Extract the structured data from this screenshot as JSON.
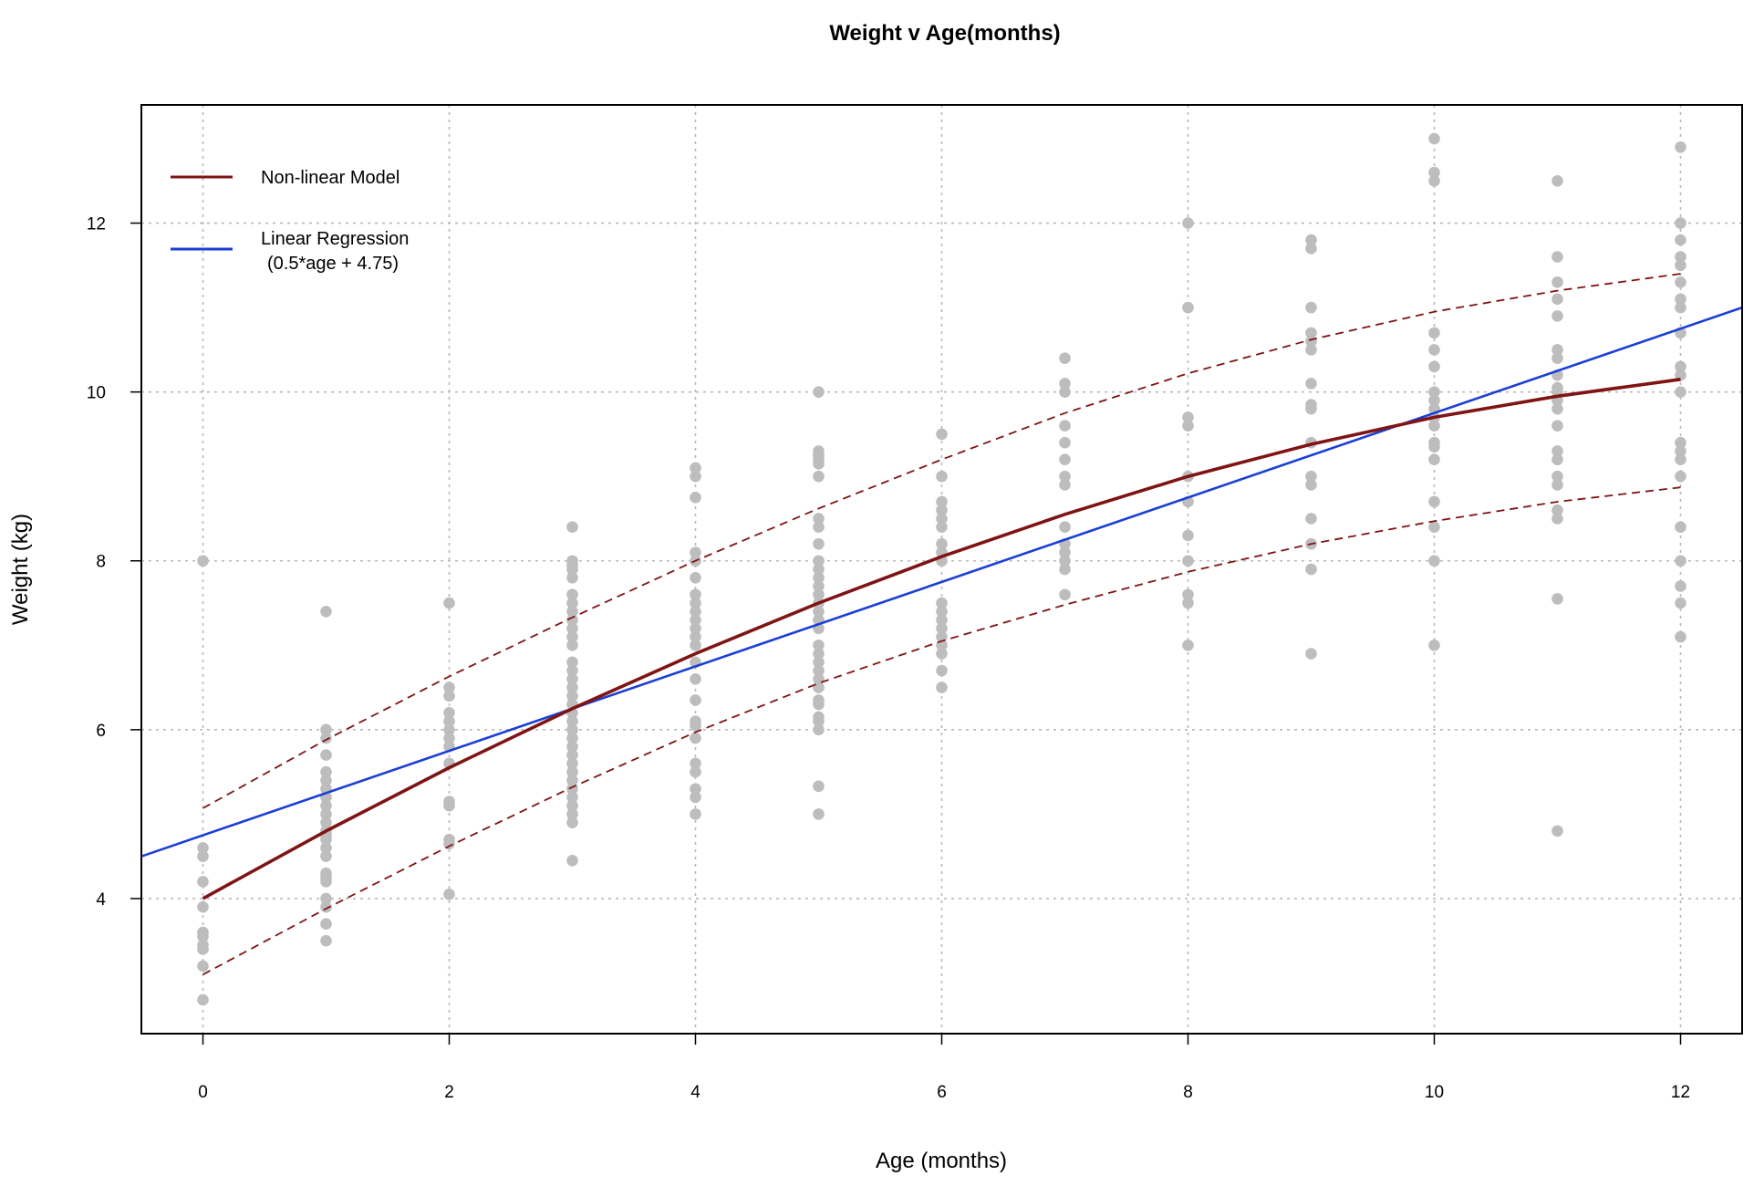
{
  "chart_data": {
    "type": "scatter",
    "title": "Weight v Age(months)",
    "xlabel": "Age (months)",
    "ylabel": "Weight (kg)",
    "xlim": [
      -0.5,
      12.5
    ],
    "ylim": [
      2.4,
      13.4
    ],
    "grid": true,
    "x_ticks": [
      0,
      2,
      4,
      6,
      8,
      10,
      12
    ],
    "y_ticks": [
      4,
      6,
      8,
      10,
      12
    ],
    "legend": {
      "position": "top-left",
      "entries": [
        {
          "label": "Non-linear Model",
          "color": "#7f1414"
        },
        {
          "label": "Linear Regression",
          "sublabel": "(0.5*age + 4.75)",
          "color": "#1b3fd6"
        }
      ]
    },
    "colors": {
      "points": "#bdbdbd",
      "nonlinear": "#7f1414",
      "linear": "#1b3fd6",
      "grid": "#b8b8b8"
    },
    "points": [
      {
        "x": 0,
        "y": [
          8.0,
          4.6,
          4.5,
          4.2,
          3.9,
          3.6,
          3.55,
          3.45,
          3.4,
          3.2,
          2.8
        ]
      },
      {
        "x": 1,
        "y": [
          7.4,
          6.0,
          5.9,
          5.7,
          5.5,
          5.4,
          5.3,
          5.2,
          5.1,
          5.0,
          4.9,
          4.8,
          4.75,
          4.7,
          4.6,
          4.5,
          4.3,
          4.25,
          4.2,
          4.0,
          3.9,
          3.7,
          3.5
        ]
      },
      {
        "x": 2,
        "y": [
          7.5,
          6.5,
          6.4,
          6.2,
          6.1,
          6.0,
          5.9,
          5.8,
          5.6,
          5.15,
          5.1,
          4.7,
          4.65,
          4.05
        ]
      },
      {
        "x": 3,
        "y": [
          8.4,
          8.0,
          7.95,
          7.9,
          7.8,
          7.6,
          7.5,
          7.4,
          7.3,
          7.2,
          7.1,
          7.0,
          6.8,
          6.7,
          6.6,
          6.5,
          6.4,
          6.3,
          6.2,
          6.1,
          6.0,
          5.9,
          5.8,
          5.7,
          5.6,
          5.5,
          5.4,
          5.3,
          5.2,
          5.1,
          5.0,
          4.9,
          4.45
        ]
      },
      {
        "x": 4,
        "y": [
          9.1,
          9.0,
          8.75,
          8.1,
          8.0,
          7.8,
          7.6,
          7.5,
          7.4,
          7.3,
          7.2,
          7.1,
          7.0,
          6.8,
          6.6,
          6.35,
          6.1,
          6.05,
          5.9,
          5.6,
          5.5,
          5.3,
          5.2,
          5.0
        ]
      },
      {
        "x": 5,
        "y": [
          10.0,
          9.3,
          9.25,
          9.2,
          9.15,
          9.0,
          8.5,
          8.4,
          8.2,
          8.0,
          7.9,
          7.8,
          7.7,
          7.6,
          7.5,
          7.4,
          7.3,
          7.2,
          7.0,
          6.9,
          6.8,
          6.7,
          6.6,
          6.5,
          6.35,
          6.3,
          6.15,
          6.1,
          6.0,
          5.33,
          5.0
        ]
      },
      {
        "x": 6,
        "y": [
          9.5,
          9.0,
          8.7,
          8.6,
          8.5,
          8.4,
          8.2,
          8.1,
          8.0,
          7.5,
          7.4,
          7.3,
          7.2,
          7.1,
          7.0,
          6.9,
          6.7,
          6.5
        ]
      },
      {
        "x": 7,
        "y": [
          10.4,
          10.1,
          10.0,
          9.6,
          9.4,
          9.2,
          9.0,
          8.9,
          8.4,
          8.2,
          8.1,
          8.0,
          7.9,
          7.6
        ]
      },
      {
        "x": 8,
        "y": [
          12.0,
          11.0,
          9.7,
          9.6,
          9.0,
          8.7,
          8.3,
          8.0,
          7.6,
          7.5,
          7.0
        ]
      },
      {
        "x": 9,
        "y": [
          11.8,
          11.7,
          11.0,
          10.7,
          10.6,
          10.5,
          10.1,
          9.85,
          9.8,
          9.4,
          9.0,
          8.9,
          8.5,
          8.2,
          7.9,
          6.9
        ]
      },
      {
        "x": 10,
        "y": [
          13.0,
          12.6,
          12.5,
          10.7,
          10.5,
          10.3,
          10.0,
          9.9,
          9.8,
          9.7,
          9.6,
          9.4,
          9.35,
          9.2,
          8.7,
          8.4,
          8.0,
          7.0
        ]
      },
      {
        "x": 11,
        "y": [
          12.5,
          11.6,
          11.3,
          11.1,
          10.9,
          10.5,
          10.4,
          10.2,
          10.05,
          10.0,
          9.9,
          9.8,
          9.6,
          9.3,
          9.2,
          9.0,
          8.9,
          8.6,
          8.5,
          7.55,
          4.8
        ]
      },
      {
        "x": 12,
        "y": [
          12.9,
          12.0,
          11.8,
          11.6,
          11.5,
          11.3,
          11.1,
          11.0,
          10.7,
          10.3,
          10.2,
          10.0,
          9.4,
          9.3,
          9.2,
          9.0,
          8.4,
          8.0,
          7.7,
          7.5,
          7.1
        ]
      }
    ],
    "series": [
      {
        "name": "Non-linear Model",
        "style": "solid",
        "x": [
          0,
          1,
          2,
          3,
          4,
          5,
          6,
          7,
          8,
          9,
          10,
          11,
          12
        ],
        "y": [
          4.0,
          4.8,
          5.55,
          6.25,
          6.9,
          7.5,
          8.05,
          8.55,
          9.0,
          9.38,
          9.7,
          9.95,
          10.15
        ]
      },
      {
        "name": "Linear Regression",
        "style": "solid",
        "x": [
          -0.5,
          12.5
        ],
        "y": [
          4.5,
          11.0
        ]
      },
      {
        "style": "dashed",
        "x": [
          0,
          1,
          2,
          3,
          4,
          5,
          6,
          7,
          8,
          9,
          10,
          11,
          12
        ],
        "y": [
          5.07,
          5.88,
          6.63,
          7.33,
          8.0,
          8.62,
          9.2,
          9.75,
          10.22,
          10.62,
          10.95,
          11.2,
          11.4
        ]
      },
      {
        "style": "dashed",
        "x": [
          0,
          1,
          2,
          3,
          4,
          5,
          6,
          7,
          8,
          9,
          10,
          11,
          12
        ],
        "y": [
          3.1,
          3.88,
          4.62,
          5.32,
          5.97,
          6.55,
          7.05,
          7.48,
          7.87,
          8.2,
          8.47,
          8.7,
          8.87
        ]
      }
    ]
  }
}
